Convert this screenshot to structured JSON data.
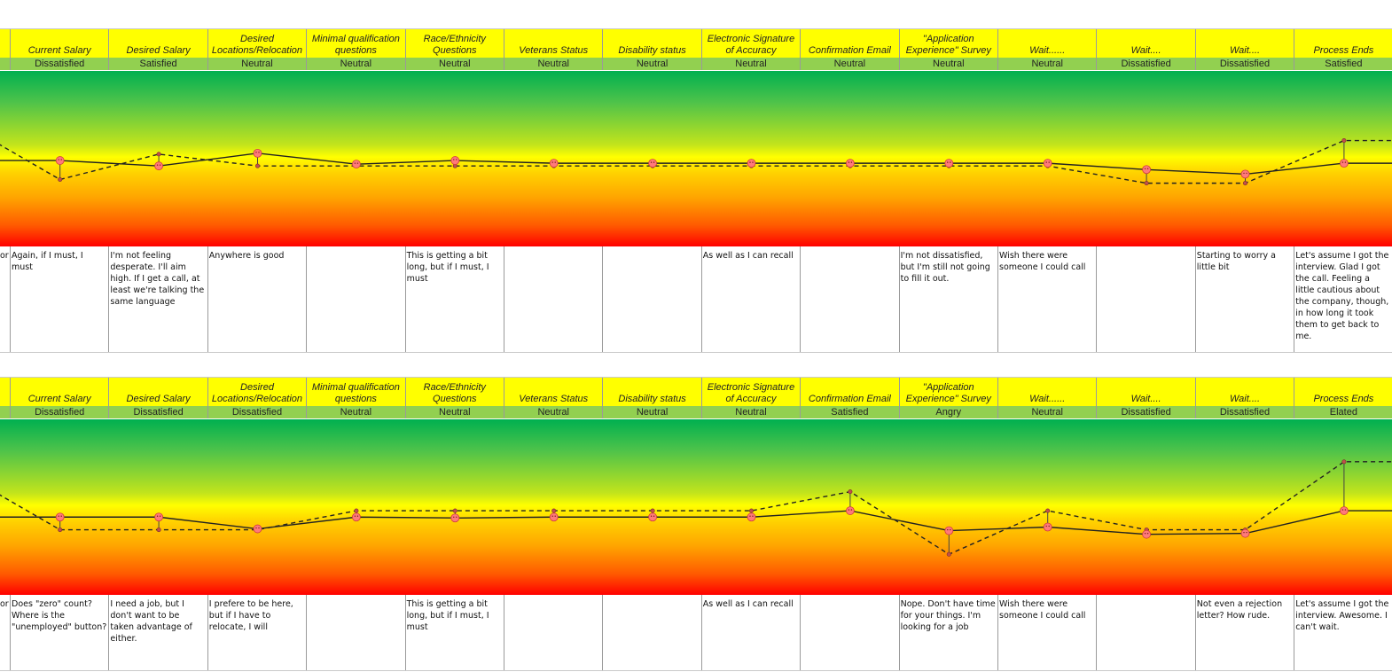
{
  "colors": {
    "header": "#ffff00",
    "emotion_row": "#92d050",
    "top": "#00b050",
    "middle": "#ffff00",
    "bottom": "#ff0000"
  },
  "left_fragment": "or",
  "columns": [
    {
      "label": "Current Salary"
    },
    {
      "label": "Desired Salary"
    },
    {
      "label": "Desired Locations/Relocation"
    },
    {
      "label": "Minimal qualification questions"
    },
    {
      "label": "Race/Ethnicity Questions"
    },
    {
      "label": "Veterans Status"
    },
    {
      "label": "Disability status"
    },
    {
      "label": "Electronic Signature of Accuracy"
    },
    {
      "label": "Confirmation Email"
    },
    {
      "label": "\"Application Experience\" Survey"
    },
    {
      "label": "Wait......"
    },
    {
      "label": "Wait...."
    },
    {
      "label": "Wait...."
    },
    {
      "label": "Process Ends"
    }
  ],
  "chart_data": [
    {
      "type": "line",
      "ylim": [
        -3,
        3
      ],
      "series": [
        {
          "values": [
            -1.15,
            0.25,
            -0.4,
            -0.4,
            -0.4,
            -0.4,
            -0.4,
            -0.4,
            -0.4,
            -0.4,
            -0.4,
            -1.35,
            -1.35,
            1.0
          ]
        },
        {
          "values": [
            -0.1,
            -0.4,
            0.3,
            -0.3,
            -0.1,
            -0.25,
            -0.25,
            -0.25,
            -0.25,
            -0.25,
            -0.25,
            -0.6,
            -0.85,
            -0.25
          ]
        }
      ],
      "emotions": [
        "Dissatisfied",
        "Satisfied",
        "Neutral",
        "Neutral",
        "Neutral",
        "Neutral",
        "Neutral",
        "Neutral",
        "Neutral",
        "Neutral",
        "Neutral",
        "Dissatisfied",
        "Dissatisfied",
        "Satisfied"
      ],
      "notes": [
        "Again, if I must, I must",
        "I'm not feeling desperate. I'll aim high. If I get a call, at least we're talking the same language",
        "Anywhere is good",
        "",
        "This is getting a bit long, but if I must, I must",
        "",
        "",
        "As well as I can recall",
        "",
        "I'm not dissatisfied, but I'm still not going to fill it out.",
        "Wish there were someone I could call",
        "",
        "Starting to worry a little bit",
        "Let's assume I got the interview.  Glad I got the call. Feeling a little cautious about the company, though, in how long it took them to get back to me."
      ]
    },
    {
      "type": "line",
      "ylim": [
        -3,
        3
      ],
      "series": [
        {
          "values": [
            -1.25,
            -1.25,
            -1.25,
            -0.2,
            -0.2,
            -0.2,
            -0.2,
            -0.2,
            0.85,
            -2.6,
            -0.2,
            -1.25,
            -1.25,
            2.5
          ]
        },
        {
          "values": [
            -0.55,
            -0.55,
            -1.2,
            -0.55,
            -0.6,
            -0.55,
            -0.55,
            -0.55,
            -0.2,
            -1.3,
            -1.1,
            -1.5,
            -1.45,
            -0.2
          ]
        }
      ],
      "emotions": [
        "Dissatisfied",
        "Dissatisfied",
        "Dissatisfied",
        "Neutral",
        "Neutral",
        "Neutral",
        "Neutral",
        "Neutral",
        "Satisfied",
        "Angry",
        "Neutral",
        "Dissatisfied",
        "Dissatisfied",
        "Elated"
      ],
      "notes": [
        "Does \"zero\" count? Where is the \"unemployed\" button?",
        "I need a job, but I don't want to be taken advantage of either.",
        "I prefere to be here, but if I have to relocate, I will",
        "",
        "This is getting a bit long, but if I must, I must",
        "",
        "",
        "As well as I can recall",
        "",
        "Nope. Don't have time for your things. I'm looking for a job",
        "Wish there were someone I could call",
        "",
        "Not even a rejection letter?  How rude.",
        "Let's assume I got the interview.  Awesome. I can't wait."
      ]
    }
  ]
}
